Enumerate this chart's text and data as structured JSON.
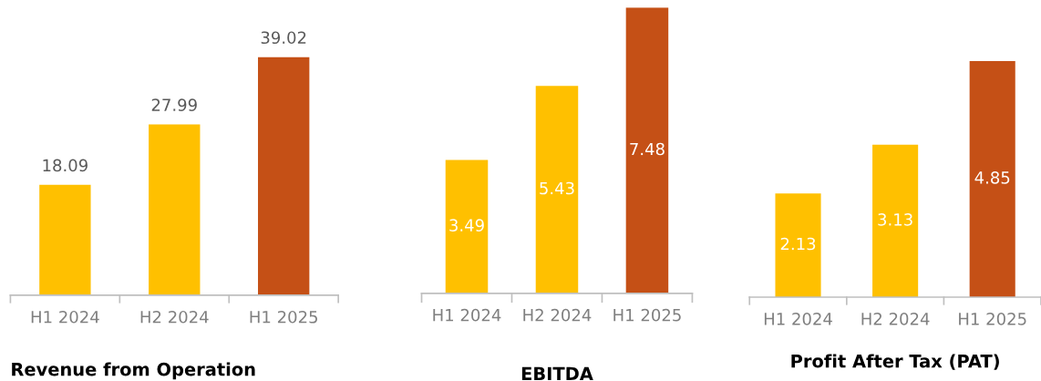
{
  "chart_data": [
    {
      "type": "bar",
      "title": "Revenue from Operation",
      "categories": [
        "H1 2024",
        "H2 2024",
        "H1 2025"
      ],
      "values": [
        18.09,
        27.99,
        39.02
      ],
      "colors": [
        "#ffc000",
        "#ffc000",
        "#c55016"
      ],
      "data_labels": true,
      "grid": false,
      "legend": false
    },
    {
      "type": "bar",
      "title": "EBITDA",
      "categories": [
        "H1 2024",
        "H2 2024",
        "H1 2025"
      ],
      "values": [
        3.49,
        5.43,
        7.48
      ],
      "colors": [
        "#ffc000",
        "#ffc000",
        "#c55016"
      ],
      "data_labels": true,
      "grid": false,
      "legend": false
    },
    {
      "type": "bar",
      "title": "Profit After Tax (PAT)",
      "categories": [
        "H1 2024",
        "H2 2024",
        "H1 2025"
      ],
      "values": [
        2.13,
        3.13,
        4.85
      ],
      "colors": [
        "#ffc000",
        "#ffc000",
        "#c55016"
      ],
      "data_labels": true,
      "grid": false,
      "legend": false
    }
  ]
}
